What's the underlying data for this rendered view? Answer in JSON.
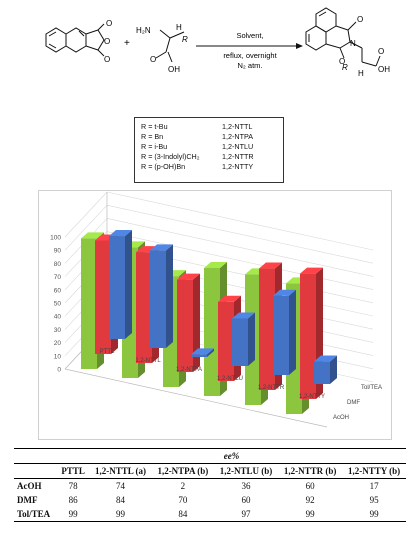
{
  "scheme": {
    "reagent_label": "H₂N",
    "h_label": "H",
    "r_label": "R",
    "oh_label": "OH",
    "o_label": "O",
    "n_label": "N",
    "plus": "+",
    "conditions_top": "Solvent,",
    "conditions_mid": "reflux, overnight",
    "conditions_bot": "N₂ atm."
  },
  "substituents": [
    {
      "r": "R = t-Bu",
      "code": "1,2-NTTL"
    },
    {
      "r": "R = Bn",
      "code": "1,2-NTPA"
    },
    {
      "r": "R = i-Bu",
      "code": "1,2-NTLU"
    },
    {
      "r": "R = (3-Indolyl)CH₂",
      "code": "1,2-NTTR"
    },
    {
      "r": "R = (p-OH)Bn",
      "code": "1,2-NTTY"
    }
  ],
  "chart_data": {
    "type": "bar",
    "categories": [
      "PTTL",
      "1,2-NTTL",
      "1,2-NTPA",
      "1,2-NTLU",
      "1,2-NTTR",
      "1,2-NTTY"
    ],
    "series": [
      {
        "name": "AcOH",
        "values": [
          78,
          74,
          2,
          36,
          60,
          17
        ],
        "color": "#4472C4"
      },
      {
        "name": "DMF",
        "values": [
          86,
          84,
          70,
          60,
          92,
          95
        ],
        "color": "#E0393E"
      },
      {
        "name": "Tol/TEA",
        "values": [
          99,
          99,
          84,
          97,
          99,
          99
        ],
        "color": "#8CC63F"
      }
    ],
    "ylim": [
      0,
      100
    ],
    "yticks": [
      0,
      10,
      20,
      30,
      40,
      50,
      60,
      70,
      80,
      90,
      100
    ],
    "grid": true,
    "xlabel": "",
    "ylabel": ""
  },
  "table": {
    "title": "ee%",
    "columns": [
      "PTTL",
      "1,2-NTTL (a)",
      "1,2-NTPA (b)",
      "1,2-NTLU (b)",
      "1,2-NTTR (b)",
      "1,2-NTTY (b)"
    ],
    "rows": [
      {
        "label": "AcOH",
        "values": [
          "78",
          "74",
          "2",
          "36",
          "60",
          "17"
        ]
      },
      {
        "label": "DMF",
        "values": [
          "86",
          "84",
          "70",
          "60",
          "92",
          "95"
        ]
      },
      {
        "label": "Tol/TEA",
        "values": [
          "99",
          "99",
          "84",
          "97",
          "99",
          "99"
        ]
      }
    ]
  }
}
